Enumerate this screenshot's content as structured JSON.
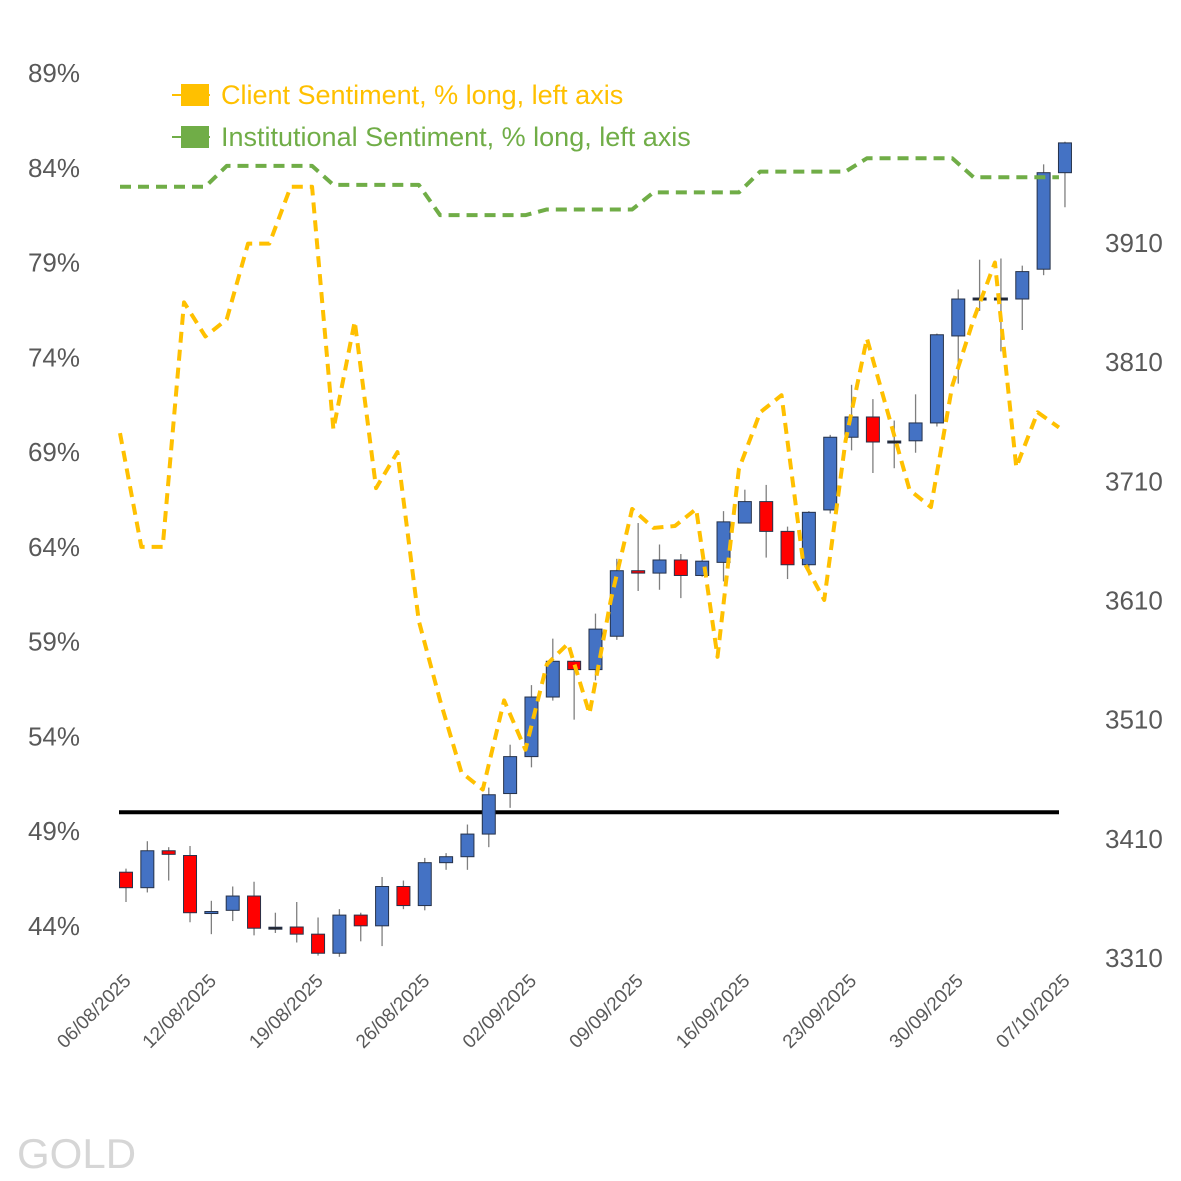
{
  "chart_data": {
    "type": "candlestick+line",
    "title": "",
    "legend": {
      "placement": "top-left",
      "entries": [
        {
          "label": "Client Sentiment, % long, left axis",
          "color": "#FFC000"
        },
        {
          "label": "Institutional Sentiment, % long, left axis",
          "color": "#70AD47"
        }
      ]
    },
    "left_axis": {
      "ticks": [
        "44%",
        "49%",
        "54%",
        "59%",
        "64%",
        "69%",
        "74%",
        "79%",
        "84%",
        "89%"
      ],
      "ylim": [
        44,
        89
      ]
    },
    "right_axis": {
      "ticks": [
        "3310",
        "3410",
        "3510",
        "3610",
        "3710",
        "3810",
        "3910"
      ],
      "ylim": [
        3310,
        3910
      ]
    },
    "x_tick_labels": [
      "06/08/2025",
      "12/08/2025",
      "19/08/2025",
      "26/08/2025",
      "02/09/2025",
      "09/09/2025",
      "16/09/2025",
      "23/09/2025",
      "30/09/2025",
      "07/10/2025"
    ],
    "x_tick_index": [
      0,
      4,
      9,
      14,
      19,
      24,
      29,
      34,
      39,
      44
    ],
    "reference_line": {
      "value": 50,
      "axis": "left",
      "color": "#000000"
    },
    "candle_colors": {
      "up": "#4472C4",
      "down": "#FF0000",
      "wick": "#7F7F7F"
    },
    "ohlc": [
      [
        3382,
        3385,
        3357,
        3369
      ],
      [
        3369,
        3408,
        3365,
        3400
      ],
      [
        3400,
        3403,
        3375,
        3397
      ],
      [
        3396,
        3404,
        3340,
        3348
      ],
      [
        3348,
        3358,
        3330,
        3349
      ],
      [
        3350,
        3370,
        3341,
        3362
      ],
      [
        3362,
        3374,
        3329,
        3335
      ],
      [
        3335,
        3348,
        3331,
        3335
      ],
      [
        3336,
        3357,
        3323,
        3330
      ],
      [
        3330,
        3344,
        3312,
        3314
      ],
      [
        3314,
        3351,
        3311,
        3346
      ],
      [
        3346,
        3348,
        3324,
        3337
      ],
      [
        3337,
        3378,
        3320,
        3370
      ],
      [
        3370,
        3375,
        3351,
        3354
      ],
      [
        3354,
        3394,
        3350,
        3390
      ],
      [
        3390,
        3398,
        3384,
        3395
      ],
      [
        3395,
        3422,
        3384,
        3414
      ],
      [
        3414,
        3453,
        3403,
        3447
      ],
      [
        3448,
        3489,
        3436,
        3479
      ],
      [
        3479,
        3539,
        3470,
        3529
      ],
      [
        3529,
        3578,
        3526,
        3559
      ],
      [
        3559,
        3560,
        3510,
        3552
      ],
      [
        3552,
        3599,
        3543,
        3586
      ],
      [
        3580,
        3645,
        3577,
        3635
      ],
      [
        3635,
        3675,
        3618,
        3633
      ],
      [
        3633,
        3657,
        3619,
        3644
      ],
      [
        3644,
        3649,
        3612,
        3631
      ],
      [
        3631,
        3645,
        3630,
        3643
      ],
      [
        3642,
        3685,
        3626,
        3676
      ],
      [
        3675,
        3703,
        3675,
        3693
      ],
      [
        3693,
        3707,
        3646,
        3668
      ],
      [
        3668,
        3672,
        3628,
        3640
      ],
      [
        3640,
        3685,
        3631,
        3684
      ],
      [
        3686,
        3749,
        3683,
        3747
      ],
      [
        3747,
        3791,
        3736,
        3764
      ],
      [
        3764,
        3779,
        3717,
        3743
      ],
      [
        3743,
        3761,
        3721,
        3743
      ],
      [
        3744,
        3783,
        3734,
        3759
      ],
      [
        3759,
        3834,
        3756,
        3833
      ],
      [
        3832,
        3871,
        3792,
        3863
      ],
      [
        3863,
        3896,
        3853,
        3863
      ],
      [
        3863,
        3897,
        3819,
        3863
      ],
      [
        3863,
        3891,
        3837,
        3886
      ],
      [
        3888,
        3976,
        3883,
        3969
      ],
      [
        3969,
        3995,
        3940,
        3994
      ]
    ],
    "series": [
      {
        "name": "Client Sentiment, % long, left axis",
        "values": [
          70.0,
          64.0,
          64.0,
          76.9,
          75.1,
          76.0,
          80.0,
          80.0,
          83.0,
          83.0,
          70.2,
          75.9,
          67.1,
          69.0,
          60.1,
          55.9,
          52.1,
          51.2,
          55.9,
          53.3,
          57.8,
          58.9,
          55.2,
          61.2,
          66.0,
          65.0,
          65.1,
          66.0,
          58.2,
          68.1,
          71.1,
          72.0,
          63.3,
          61.2,
          69.6,
          75.0,
          71.0,
          67.0,
          66.1,
          72.5,
          76.0,
          79.0,
          68.2,
          71.1,
          70.3
        ]
      },
      {
        "name": "Institutional Sentiment, % long, left axis",
        "values": [
          83.0,
          83.0,
          83.0,
          83.0,
          83.0,
          84.1,
          84.1,
          84.1,
          84.1,
          84.1,
          83.1,
          83.1,
          83.1,
          83.1,
          83.1,
          81.5,
          81.5,
          81.5,
          81.5,
          81.5,
          81.8,
          81.8,
          81.8,
          81.8,
          81.8,
          82.7,
          82.7,
          82.7,
          82.7,
          82.7,
          83.8,
          83.8,
          83.8,
          83.8,
          83.8,
          84.5,
          84.5,
          84.5,
          84.5,
          84.5,
          83.5,
          83.5,
          83.5,
          83.5,
          83.5
        ]
      }
    ]
  },
  "watermark": "GOLD"
}
